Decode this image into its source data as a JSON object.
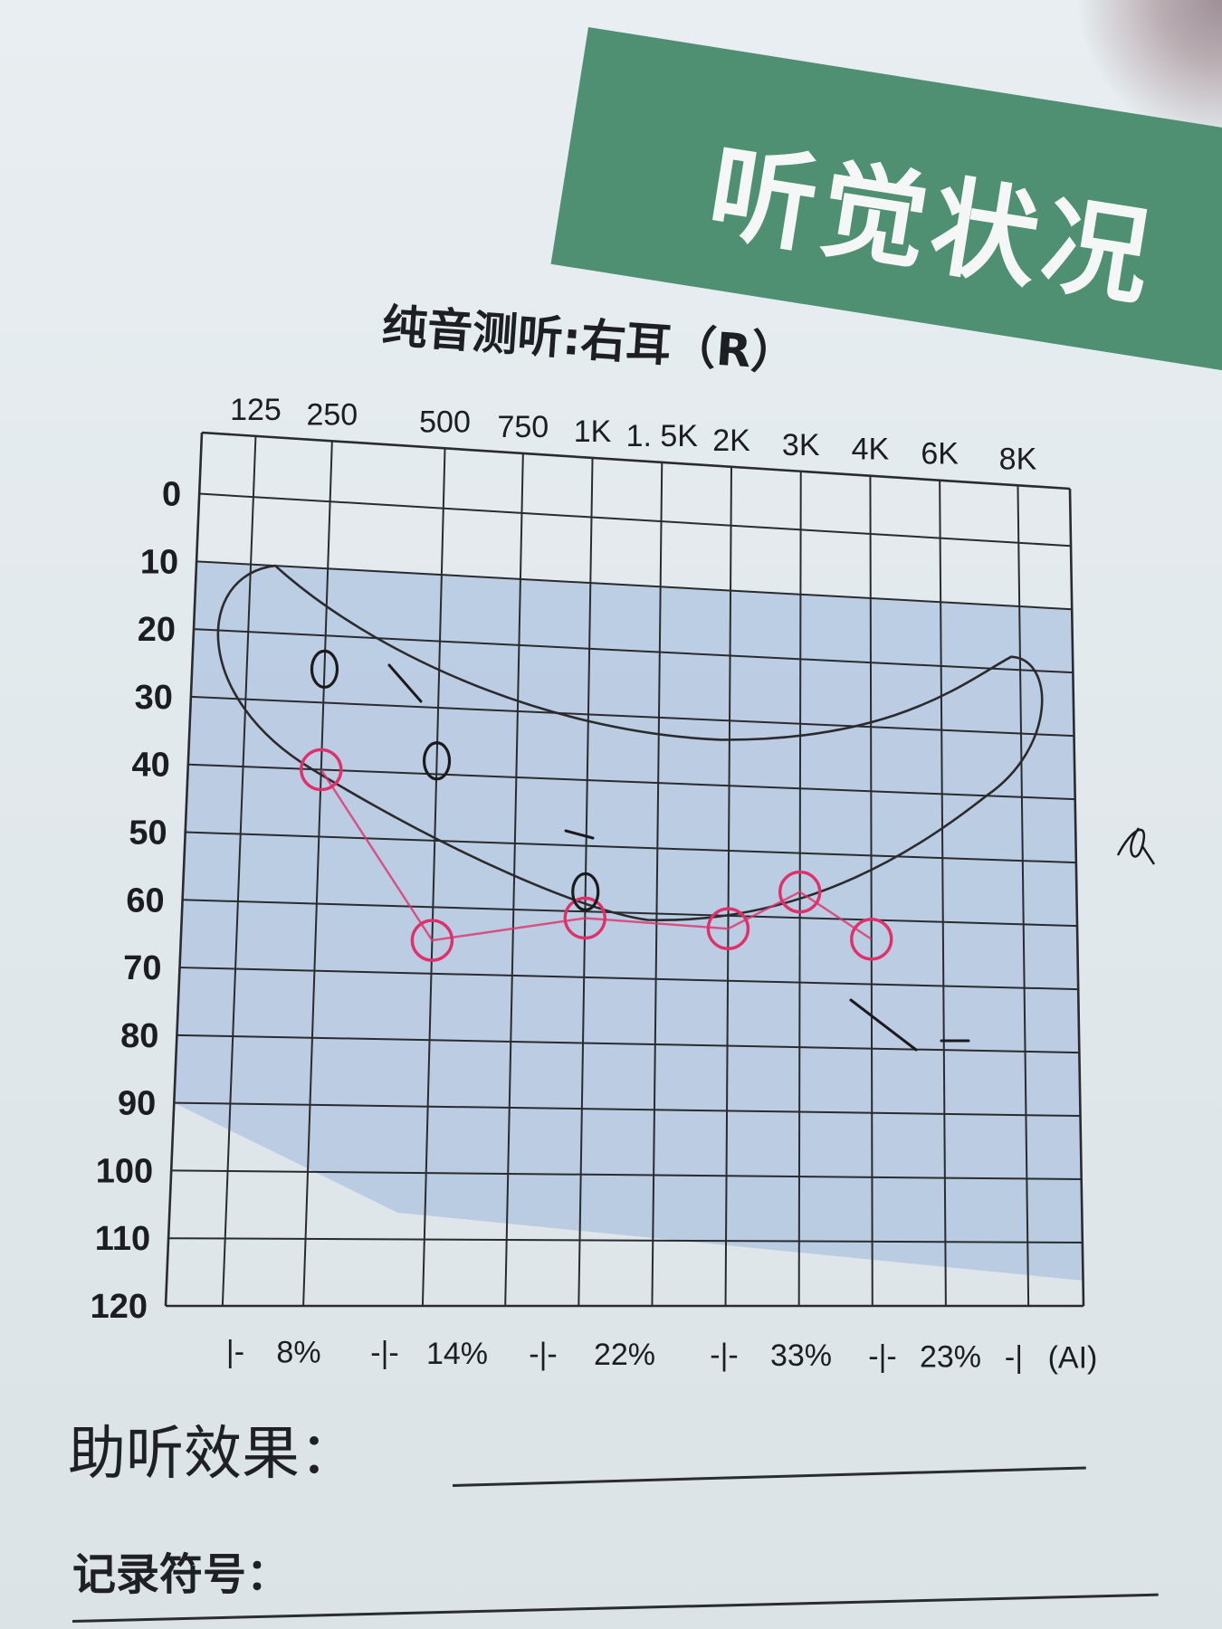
{
  "banner": {
    "title": "听觉状况"
  },
  "chart_title": "纯音测听:右耳（R）",
  "chart_data": {
    "type": "scatter",
    "title": "纯音测听:右耳（R）",
    "x_tick_labels": [
      "125",
      "250",
      "500",
      "750",
      "1K",
      "1. 5K",
      "2K",
      "3K",
      "4K",
      "6K",
      "8K"
    ],
    "y_tick_labels": [
      "0",
      "10",
      "20",
      "30",
      "40",
      "50",
      "60",
      "70",
      "80",
      "90",
      "100",
      "110",
      "120"
    ],
    "ylim": [
      0,
      120
    ],
    "y_inverted": true,
    "grid": true,
    "bottom_labels": [
      "|-",
      "8%",
      "-|-",
      "14%",
      "-|-",
      "22%",
      "-|-",
      "33%",
      "-|-",
      "23%",
      "-|",
      "(AI)"
    ],
    "series": [
      {
        "color": "#e0306a",
        "x": [
          "250",
          "500",
          "1K",
          "2K",
          "3K",
          "4K"
        ],
        "values": [
          40,
          65,
          61,
          62,
          56,
          63
        ]
      },
      {
        "color": "#1b1b1d",
        "x": [
          "250",
          "500",
          "1K"
        ],
        "values": [
          25,
          38,
          57
        ]
      }
    ],
    "shaded_region_color": "#9db6dc",
    "speech_banana_color": "#2b2b2d"
  },
  "labels": {
    "hearing_aid_effect": "助听效果：",
    "record_symbols": "记录符号："
  },
  "colors": {
    "banner_green": "#4f8f72",
    "red_marks": "#e0306a",
    "ink": "#1b1b1d",
    "shading": "#9db6dc"
  }
}
